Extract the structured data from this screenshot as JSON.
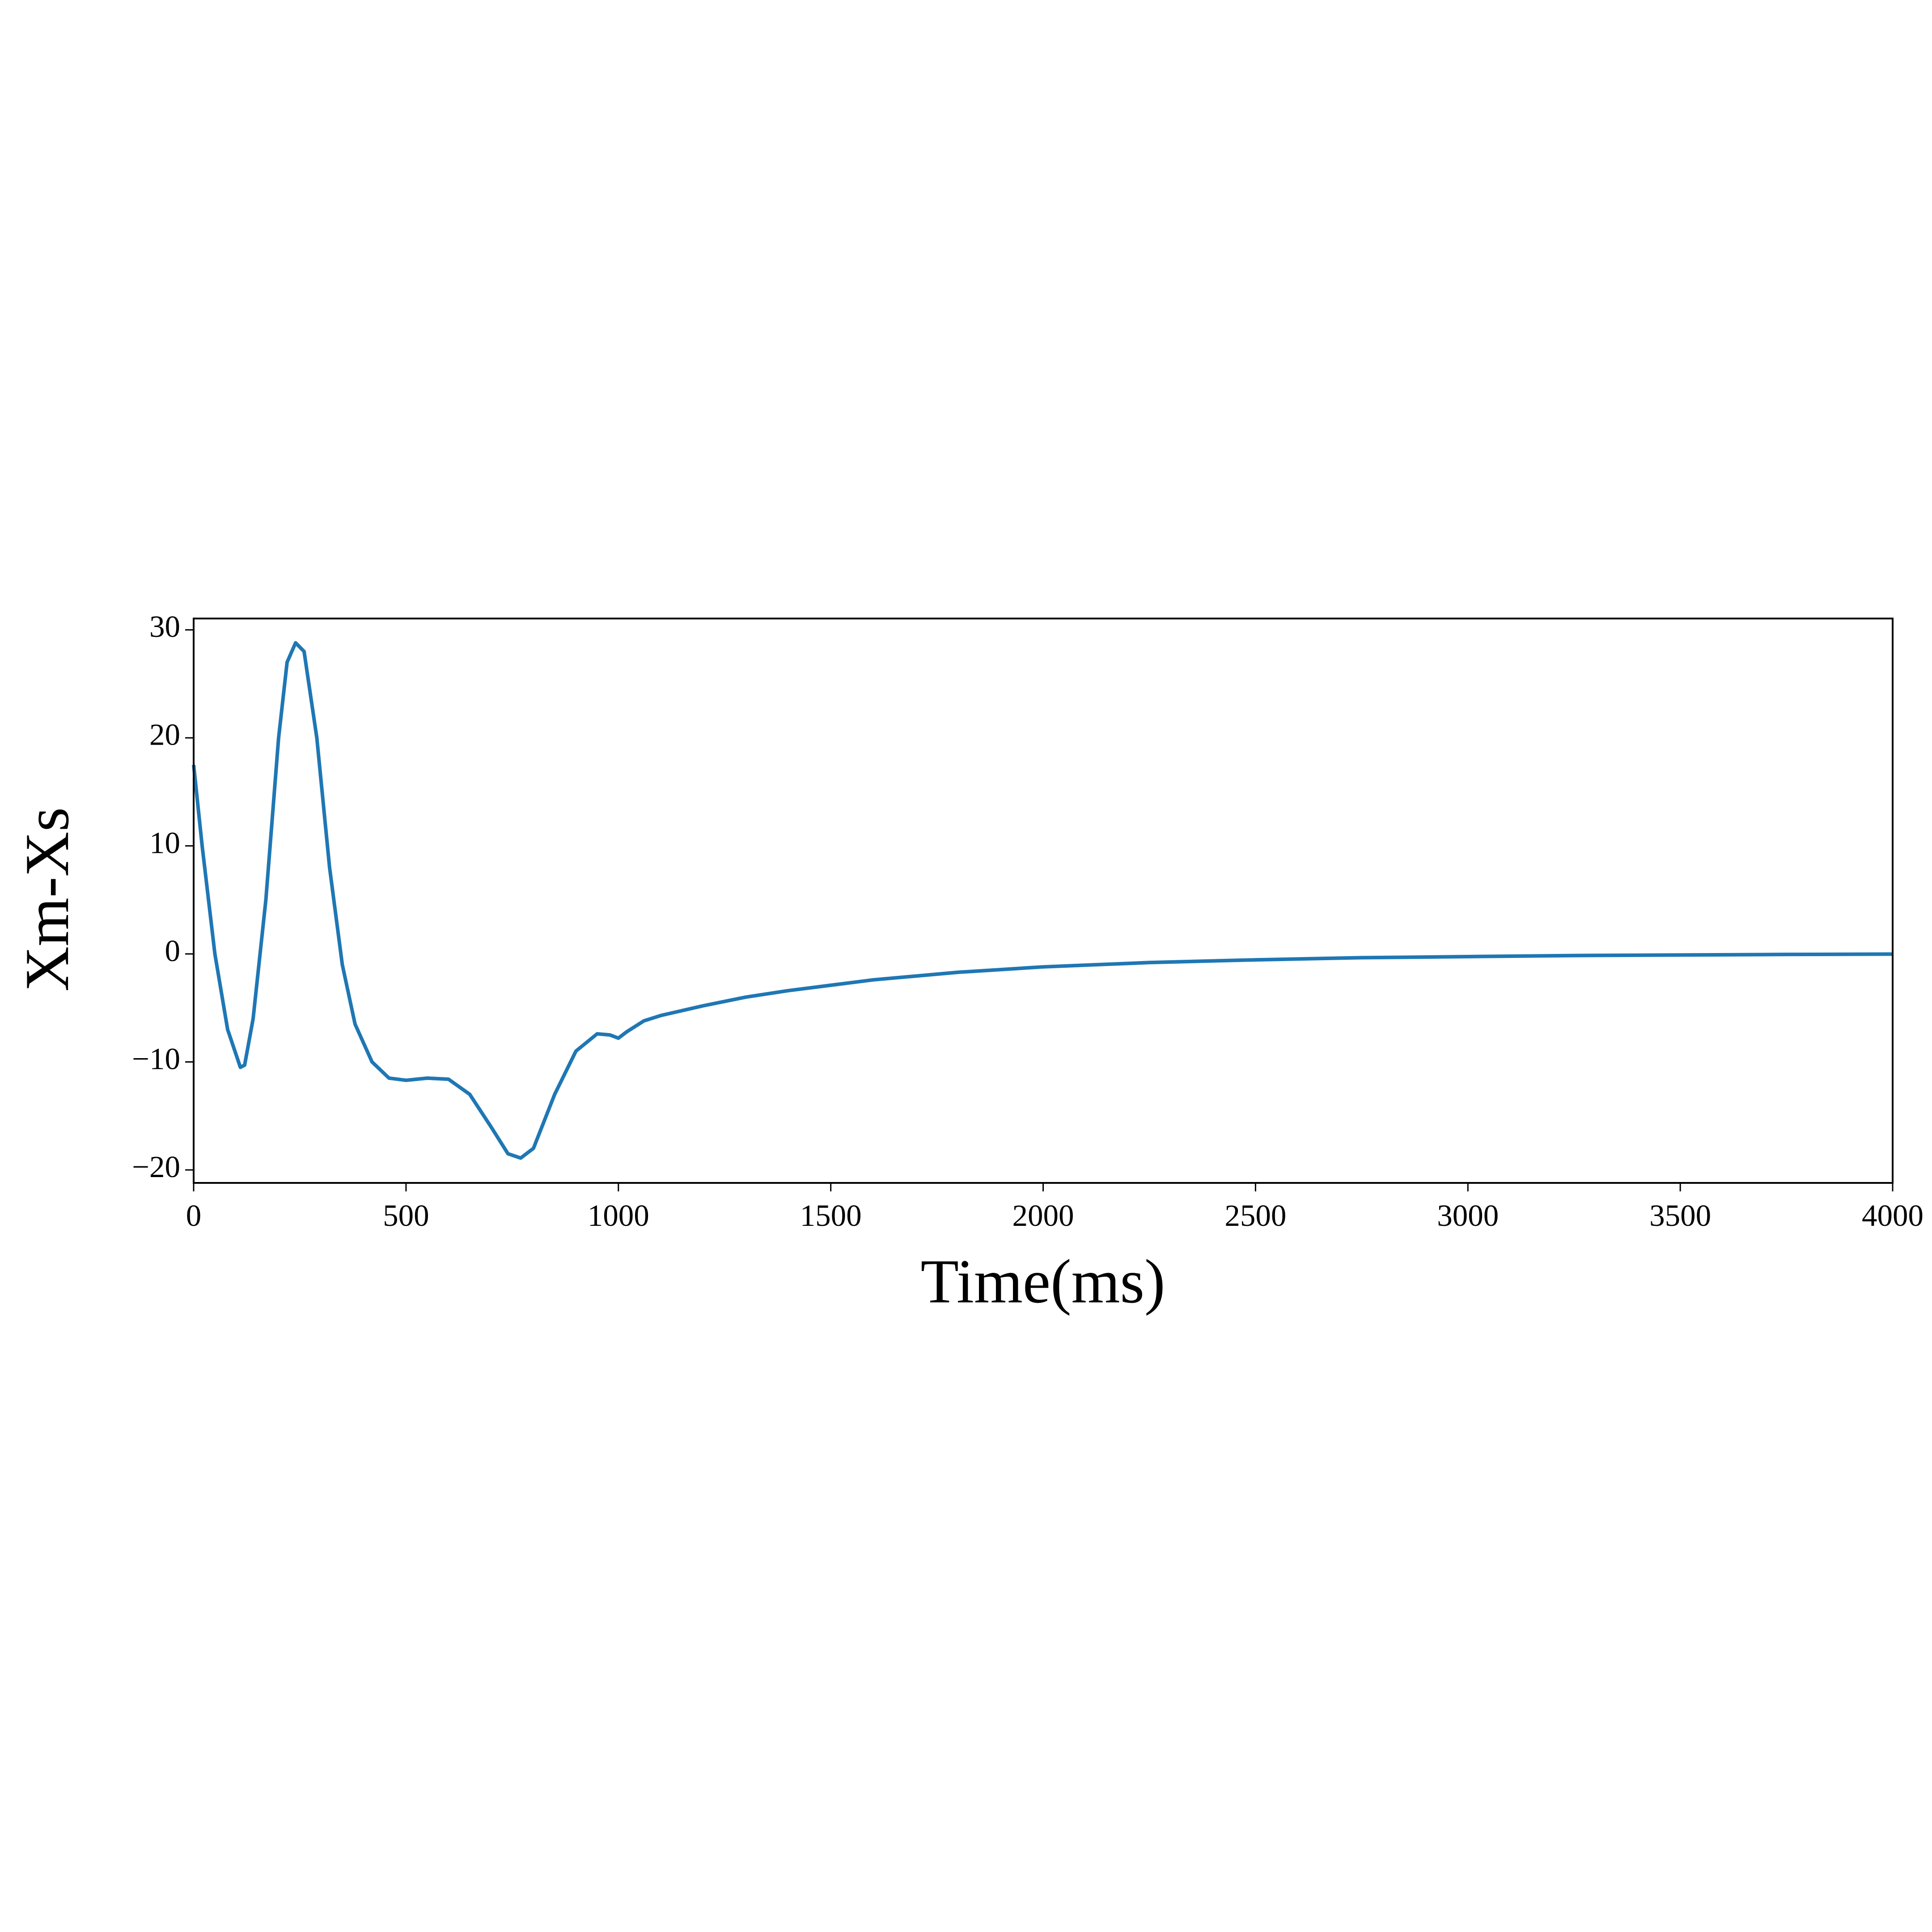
{
  "chart_data": {
    "type": "line",
    "x_label": "Time(ms)",
    "y_label": "Xm-Xs",
    "xlim": [
      0,
      4000
    ],
    "ylim": [
      -21.2,
      31.05
    ],
    "xticks": [
      0,
      500,
      1000,
      1500,
      2000,
      2500,
      3000,
      3500,
      4000
    ],
    "yticks": [
      {
        "value": -20,
        "label": "−20"
      },
      {
        "value": -10,
        "label": "−10"
      },
      0,
      10,
      20,
      30
    ],
    "grid": false,
    "series": [
      {
        "color": "#1f77b4",
        "x": [
          0,
          20,
          50,
          80,
          110,
          120,
          140,
          170,
          200,
          220,
          240,
          260,
          290,
          320,
          350,
          380,
          420,
          460,
          500,
          550,
          600,
          650,
          700,
          740,
          770,
          800,
          850,
          900,
          950,
          980,
          1000,
          1020,
          1060,
          1100,
          1200,
          1300,
          1400,
          1500,
          1600,
          1800,
          2000,
          2250,
          2500,
          2750,
          3000,
          3250,
          3500,
          3750,
          4000
        ],
        "values": [
          17.5,
          10,
          0,
          -7,
          -10.5,
          -10.3,
          -6,
          5,
          20,
          27,
          28.8,
          28,
          20,
          8,
          -1,
          -6.5,
          -10,
          -11.5,
          -11.7,
          -11.5,
          -11.6,
          -13,
          -16,
          -18.5,
          -18.9,
          -18,
          -13,
          -9,
          -7.4,
          -7.5,
          -7.8,
          -7.2,
          -6.2,
          -5.7,
          -4.8,
          -4.0,
          -3.4,
          -2.9,
          -2.4,
          -1.7,
          -1.2,
          -0.8,
          -0.55,
          -0.35,
          -0.25,
          -0.15,
          -0.1,
          -0.05,
          -0.02
        ]
      }
    ]
  }
}
